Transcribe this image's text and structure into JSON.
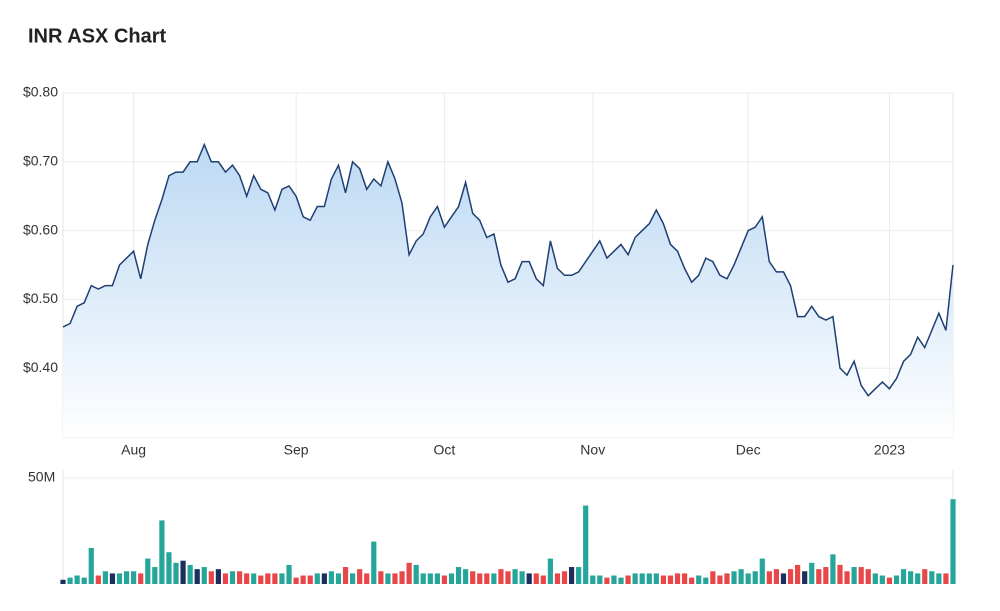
{
  "chart_data": [
    {
      "type": "area",
      "title": "INR ASX Chart",
      "categories": [
        null,
        null,
        null,
        null,
        null,
        null,
        null,
        null,
        null,
        null,
        "Aug",
        null,
        null,
        null,
        null,
        null,
        null,
        null,
        null,
        null,
        null,
        null,
        null,
        null,
        null,
        null,
        null,
        null,
        null,
        null,
        null,
        null,
        null,
        "Sep",
        null,
        null,
        null,
        null,
        null,
        null,
        null,
        null,
        null,
        null,
        null,
        null,
        null,
        null,
        null,
        null,
        null,
        null,
        null,
        null,
        "Oct",
        null,
        null,
        null,
        null,
        null,
        null,
        null,
        null,
        null,
        null,
        null,
        null,
        null,
        null,
        null,
        null,
        null,
        null,
        null,
        null,
        "Nov",
        null,
        null,
        null,
        null,
        null,
        null,
        null,
        null,
        null,
        null,
        null,
        null,
        null,
        null,
        null,
        null,
        null,
        null,
        null,
        null,
        null,
        "Dec",
        null,
        null,
        null,
        null,
        null,
        null,
        null,
        null,
        null,
        null,
        null,
        null,
        null,
        null,
        null,
        null,
        null,
        null,
        null,
        "2023",
        null,
        null,
        null,
        null,
        null,
        null,
        null,
        null,
        null
      ],
      "series": [
        {
          "color": "#1f3f73",
          "values": [
            0.46,
            0.465,
            0.49,
            0.495,
            0.52,
            0.515,
            0.52,
            0.52,
            0.55,
            0.56,
            0.57,
            0.53,
            0.58,
            0.615,
            0.645,
            0.68,
            0.685,
            0.685,
            0.7,
            0.7,
            0.725,
            0.7,
            0.7,
            0.685,
            0.695,
            0.68,
            0.65,
            0.68,
            0.66,
            0.655,
            0.63,
            0.66,
            0.665,
            0.65,
            0.62,
            0.615,
            0.635,
            0.635,
            0.675,
            0.695,
            0.655,
            0.7,
            0.69,
            0.66,
            0.675,
            0.665,
            0.7,
            0.675,
            0.64,
            0.565,
            0.585,
            0.595,
            0.62,
            0.635,
            0.605,
            0.62,
            0.635,
            0.67,
            0.625,
            0.615,
            0.59,
            0.595,
            0.55,
            0.525,
            0.53,
            0.555,
            0.555,
            0.53,
            0.52,
            0.585,
            0.545,
            0.535,
            0.535,
            0.54,
            0.555,
            0.57,
            0.585,
            0.56,
            0.57,
            0.58,
            0.565,
            0.59,
            0.6,
            0.61,
            0.63,
            0.61,
            0.58,
            0.57,
            0.545,
            0.525,
            0.535,
            0.56,
            0.555,
            0.535,
            0.53,
            0.55,
            0.575,
            0.6,
            0.605,
            0.62,
            0.555,
            0.54,
            0.54,
            0.52,
            0.475,
            0.475,
            0.49,
            0.475,
            0.47,
            0.475,
            0.4,
            0.39,
            0.41,
            0.375,
            0.36,
            0.37,
            0.38,
            0.37,
            0.385,
            0.41,
            0.42,
            0.445,
            0.43,
            0.455,
            0.48,
            0.455,
            0.55
          ]
        }
      ],
      "fill_top": "#b9d7f3",
      "ylim": [
        0.3,
        0.8
      ],
      "yticks": [
        {
          "value": 0.4,
          "label": "$0.40"
        },
        {
          "value": 0.5,
          "label": "$0.50"
        },
        {
          "value": 0.6,
          "label": "$0.60"
        },
        {
          "value": 0.7,
          "label": "$0.70"
        },
        {
          "value": 0.8,
          "label": "$0.80"
        }
      ],
      "grid": true
    },
    {
      "type": "bar",
      "values": [
        2,
        3,
        4,
        3,
        17,
        4,
        6,
        5,
        5,
        6,
        6,
        5,
        12,
        8,
        30,
        15,
        10,
        11,
        9,
        7,
        8,
        6,
        7,
        5,
        6,
        6,
        5,
        5,
        4,
        5,
        5,
        5,
        9,
        3,
        4,
        4,
        5,
        5,
        6,
        5,
        8,
        5,
        7,
        5,
        20,
        6,
        5,
        5,
        6,
        10,
        9,
        5,
        5,
        5,
        4,
        5,
        8,
        7,
        6,
        5,
        5,
        5,
        7,
        6,
        7,
        6,
        5,
        5,
        4,
        12,
        5,
        6,
        8,
        8,
        37,
        4,
        4,
        3,
        4,
        3,
        4,
        5,
        5,
        5,
        5,
        4,
        4,
        5,
        5,
        3,
        4,
        3,
        6,
        4,
        5,
        6,
        7,
        5,
        6,
        12,
        6,
        7,
        5,
        7,
        9,
        6,
        10,
        7,
        8,
        14,
        9,
        6,
        8,
        8,
        7,
        5,
        4,
        3,
        4,
        7,
        6,
        5,
        7,
        6,
        5,
        5,
        40
      ],
      "up_color": "#26a69a",
      "down_color": "#e8474a",
      "flat_color": "#1b2f5e",
      "ylim": [
        0,
        54
      ],
      "yticks": [
        {
          "value": 50,
          "label": "50M"
        }
      ],
      "grid": true
    }
  ]
}
